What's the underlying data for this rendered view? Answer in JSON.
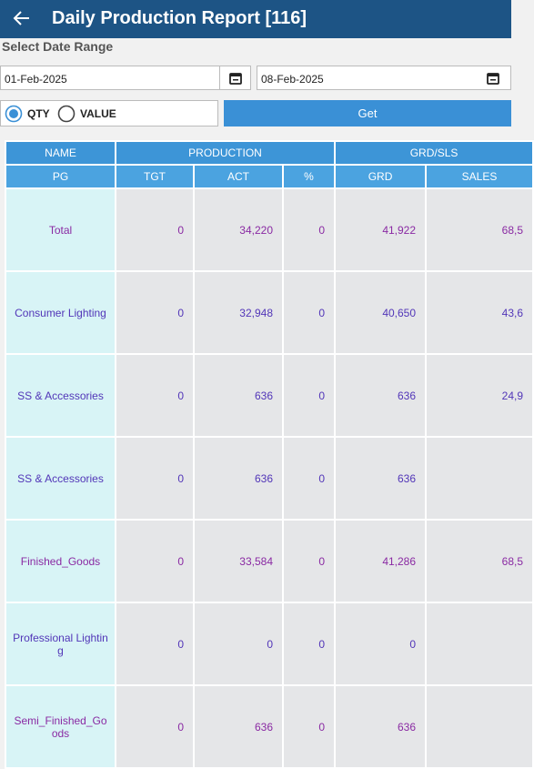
{
  "header": {
    "title": "Daily Production Report [116]"
  },
  "filters": {
    "label": "Select Date Range",
    "from": "01-Feb-2025",
    "to": "08-Feb-2025",
    "options": [
      "QTY",
      "VALUE"
    ],
    "selected": 0,
    "button": "Get"
  },
  "table": {
    "group_headers": [
      "NAME",
      "PRODUCTION",
      "GRD/SLS"
    ],
    "columns": [
      "PG",
      "TGT",
      "ACT",
      "%",
      "GRD",
      "SALES"
    ],
    "rows": [
      {
        "color": "#8a2aa3",
        "cells": [
          "Total",
          "0",
          "34,220",
          "0",
          "41,922",
          "68,5"
        ]
      },
      {
        "color": "#5236b8",
        "cells": [
          "Consumer Lighting",
          "0",
          "32,948",
          "0",
          "40,650",
          "43,6"
        ]
      },
      {
        "color": "#5236b8",
        "cells": [
          "SS & Accessories",
          "0",
          "636",
          "0",
          "636",
          "24,9"
        ]
      },
      {
        "color": "#5236b8",
        "cells": [
          "SS & Accessories",
          "0",
          "636",
          "0",
          "636",
          ""
        ]
      },
      {
        "color": "#8a2aa3",
        "cells": [
          "Finished_Goods",
          "0",
          "33,584",
          "0",
          "41,286",
          "68,5"
        ]
      },
      {
        "color": "#5236b8",
        "cells": [
          "Professional Lighting",
          "0",
          "0",
          "0",
          "0",
          ""
        ]
      },
      {
        "color": "#8a2aa3",
        "cells": [
          "Semi_Finished_Goods",
          "0",
          "636",
          "0",
          "636",
          ""
        ]
      }
    ]
  }
}
